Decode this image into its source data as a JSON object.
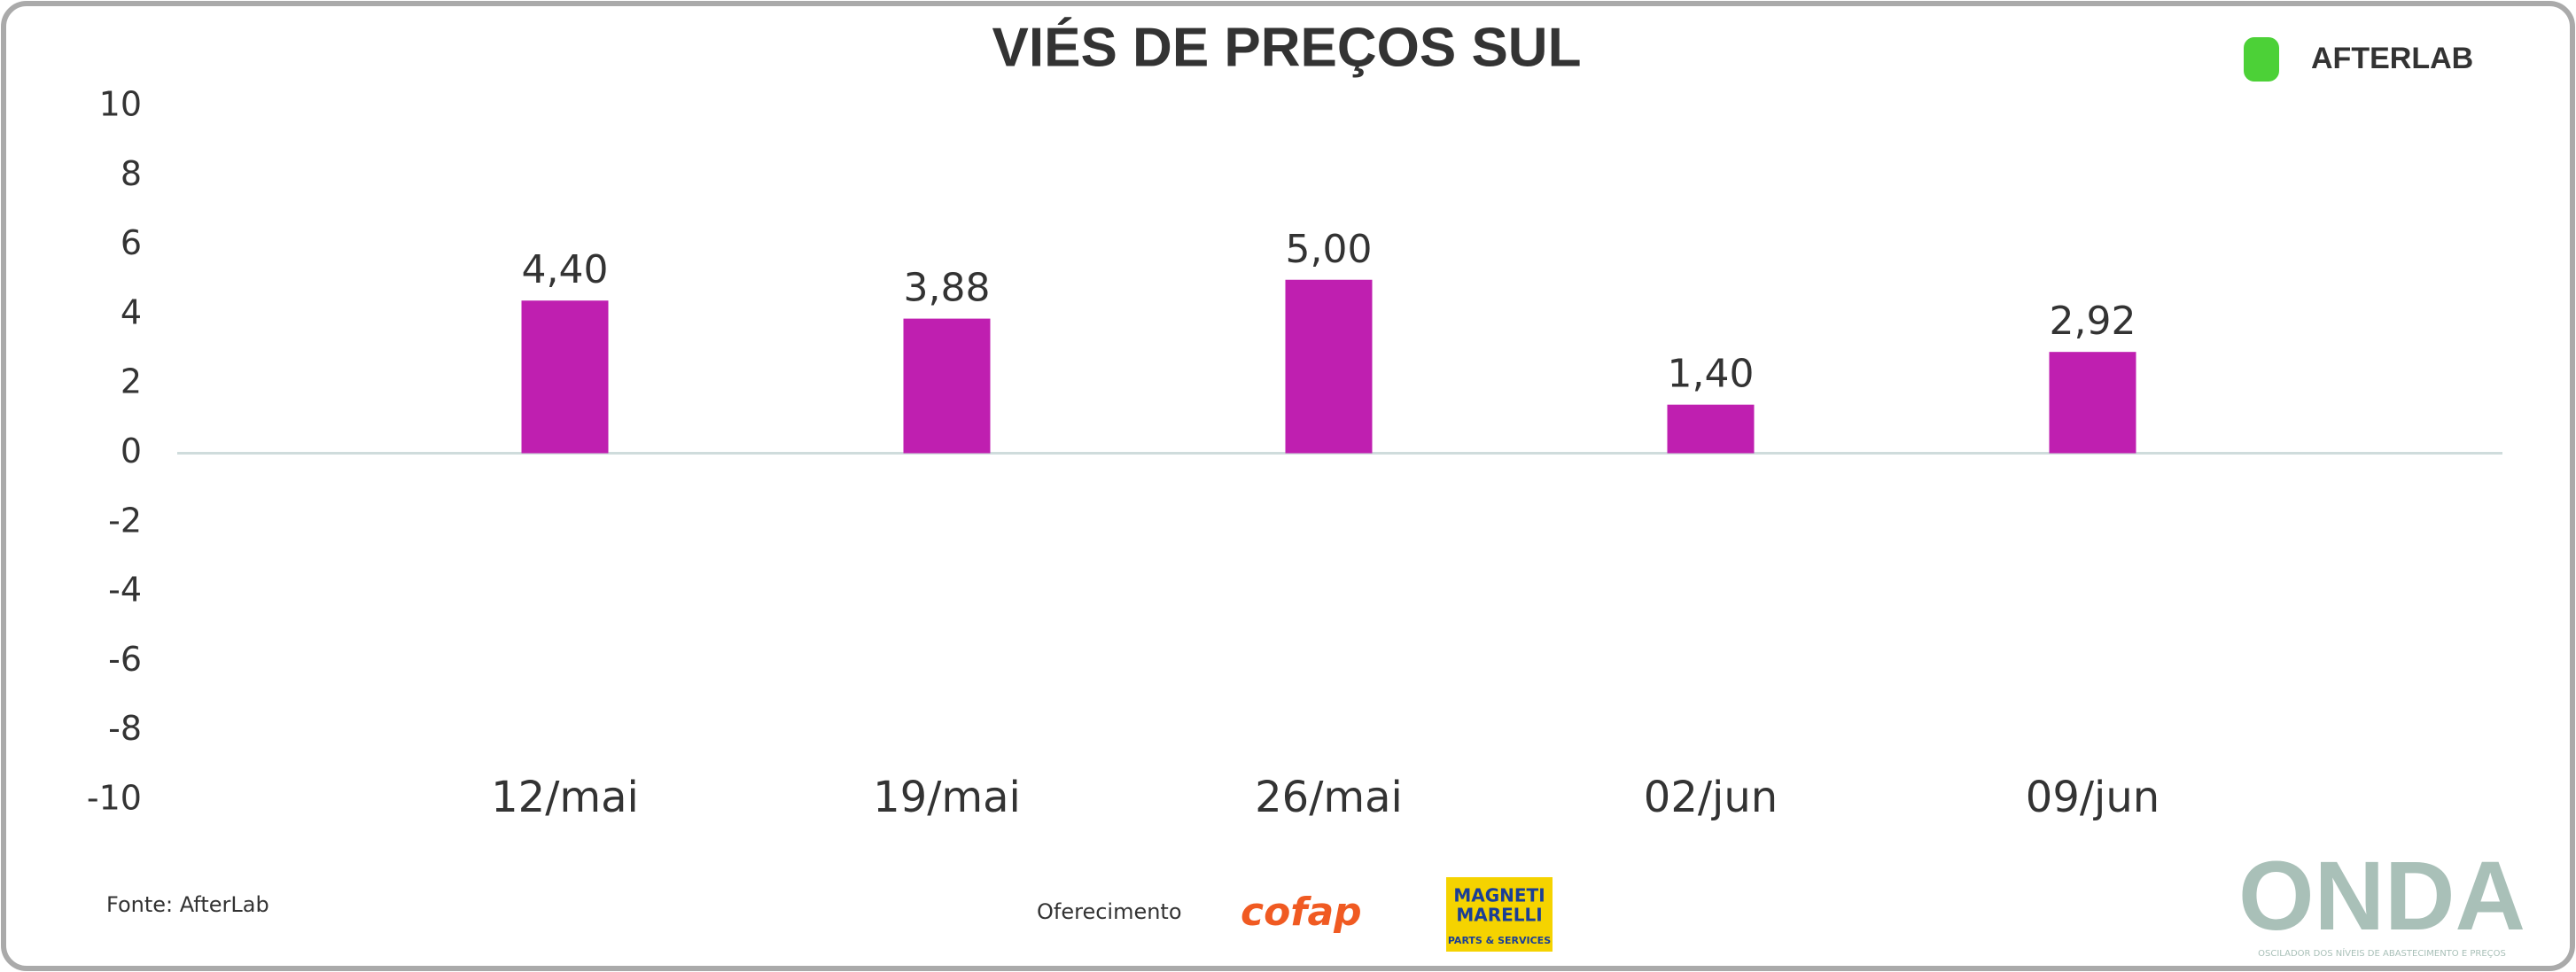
{
  "chart_data": {
    "type": "bar",
    "title": "VIÉS DE PREÇOS SUL",
    "categories": [
      "12/mai",
      "19/mai",
      "26/mai",
      "02/jun",
      "09/jun"
    ],
    "values": [
      4.4,
      3.88,
      5.0,
      1.4,
      2.92
    ],
    "value_labels": [
      "4,40",
      "3,88",
      "5,00",
      "1,40",
      "2,92"
    ],
    "color": "#bf1fb0",
    "ylim": [
      -10,
      10
    ],
    "yticks": [
      -10,
      -8,
      -6,
      -4,
      -2,
      0,
      2,
      4,
      6,
      8,
      10
    ]
  },
  "branding": {
    "top_logo": "AFTERLAB",
    "source": "Fonte: AfterLab",
    "sponsor_label": "Oferecimento",
    "sponsor_1": "cofap",
    "sponsor_2_line1": "MAGNETI",
    "sponsor_2_line2": "MARELLI",
    "sponsor_2_line3": "PARTS & SERVICES",
    "bottom_logo": "ONDA",
    "bottom_tagline": "OSCILADOR DOS NÍVEIS DE ABASTECIMENTO E PREÇOS"
  }
}
